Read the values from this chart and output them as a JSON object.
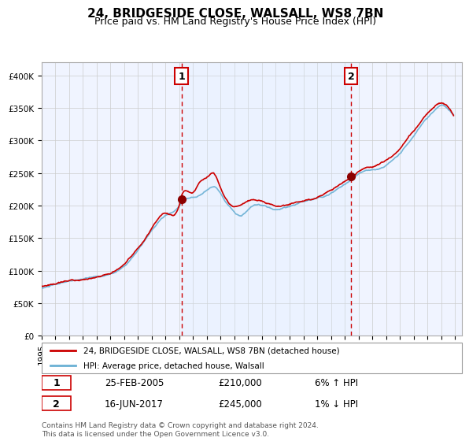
{
  "title": "24, BRIDGESIDE CLOSE, WALSALL, WS8 7BN",
  "subtitle": "Price paid vs. HM Land Registry's House Price Index (HPI)",
  "footer": "Contains HM Land Registry data © Crown copyright and database right 2024.\nThis data is licensed under the Open Government Licence v3.0.",
  "legend_line1": "24, BRIDGESIDE CLOSE, WALSALL, WS8 7BN (detached house)",
  "legend_line2": "HPI: Average price, detached house, Walsall",
  "sale1_date": "25-FEB-2005",
  "sale1_price": 210000,
  "sale1_pct": "6% ↑ HPI",
  "sale2_date": "16-JUN-2017",
  "sale2_price": 245000,
  "sale2_pct": "1% ↓ HPI",
  "hpi_color": "#6ab0d4",
  "price_color": "#cc0000",
  "marker_color": "#8b0000",
  "vline_color": "#cc0000",
  "shade_color": "#ddeeff",
  "background_color": "#f0f4ff",
  "grid_color": "#cccccc",
  "ylim": [
    0,
    420000
  ],
  "yticks": [
    0,
    50000,
    100000,
    150000,
    200000,
    250000,
    300000,
    350000,
    400000
  ],
  "sale1_x": 2005.15,
  "sale2_x": 2017.45
}
